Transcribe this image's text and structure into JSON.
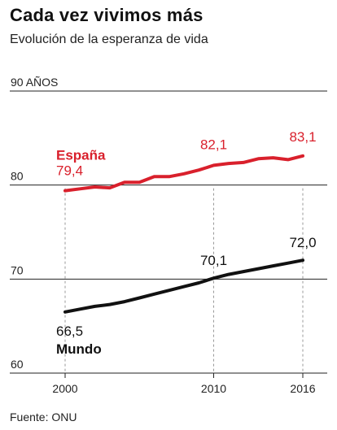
{
  "title": "Cada vez vivimos más",
  "subtitle": "Evolución de la esperanza de vida",
  "source": "Fuente: ONU",
  "colors": {
    "espana": "#d9202c",
    "mundo": "#111111",
    "grid": "#222222",
    "guide": "#999999"
  },
  "chart_data": {
    "type": "line",
    "title": "Cada vez vivimos más",
    "subtitle": "Evolución de la esperanza de vida",
    "ylabel": "AÑOS",
    "ylim": [
      60,
      90
    ],
    "yticks": [
      {
        "value": 90,
        "label": "90 AÑOS"
      },
      {
        "value": 80,
        "label": "80"
      },
      {
        "value": 70,
        "label": "70"
      },
      {
        "value": 60,
        "label": "60"
      }
    ],
    "xlim": [
      2000,
      2016
    ],
    "xticks": [
      {
        "value": 2000,
        "label": "2000"
      },
      {
        "value": 2010,
        "label": "2010"
      },
      {
        "value": 2016,
        "label": "2016"
      }
    ],
    "grid": true,
    "legend": "inline labels",
    "series": [
      {
        "name": "España",
        "color": "#d9202c",
        "x": [
          2000,
          2001,
          2002,
          2003,
          2004,
          2005,
          2006,
          2007,
          2008,
          2009,
          2010,
          2011,
          2012,
          2013,
          2014,
          2015,
          2016
        ],
        "values": [
          79.4,
          79.6,
          79.8,
          79.7,
          80.3,
          80.3,
          80.9,
          80.9,
          81.2,
          81.6,
          82.1,
          82.3,
          82.4,
          82.8,
          82.9,
          82.7,
          83.1
        ],
        "labels": [
          {
            "x": 2000,
            "y": 79.4,
            "text": "79,4"
          },
          {
            "x": 2010,
            "y": 82.1,
            "text": "82,1"
          },
          {
            "x": 2016,
            "y": 83.1,
            "text": "83,1"
          }
        ]
      },
      {
        "name": "Mundo",
        "color": "#111111",
        "x": [
          2000,
          2001,
          2002,
          2003,
          2004,
          2005,
          2006,
          2007,
          2008,
          2009,
          2010,
          2011,
          2012,
          2013,
          2014,
          2015,
          2016
        ],
        "values": [
          66.5,
          66.8,
          67.1,
          67.3,
          67.6,
          68.0,
          68.4,
          68.8,
          69.2,
          69.6,
          70.1,
          70.5,
          70.8,
          71.1,
          71.4,
          71.7,
          72.0
        ],
        "labels": [
          {
            "x": 2000,
            "y": 66.5,
            "text": "66,5"
          },
          {
            "x": 2010,
            "y": 70.1,
            "text": "70,1"
          },
          {
            "x": 2016,
            "y": 72.0,
            "text": "72,0"
          }
        ]
      }
    ]
  }
}
